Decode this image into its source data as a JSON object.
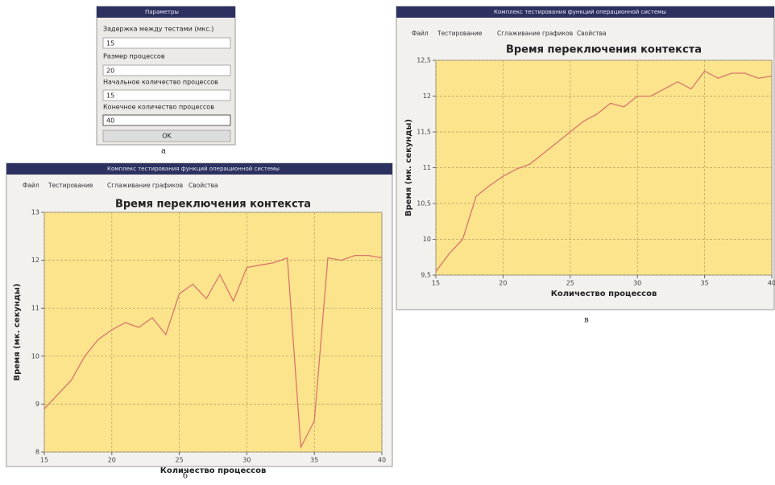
{
  "dialog": {
    "title": "Параметры",
    "fields": [
      {
        "label": "Задержка между тестами (мкс.)",
        "value": "15"
      },
      {
        "label": "Размер процессов",
        "value": "20"
      },
      {
        "label": "Начальное количество процессов",
        "value": "15"
      },
      {
        "label": "Конечное количество процессов",
        "value": "40"
      }
    ],
    "button": "OK"
  },
  "windows": [
    {
      "title": "Комплекс тестирования функций операционной системы",
      "menu": [
        "Файл",
        "Тестирование",
        "Сглаживание графиков",
        "Свойства"
      ]
    },
    {
      "title": "Комплекс тестирования функций операционной системы",
      "menu": [
        "Файл",
        "Тестирование",
        "Сглаживание графиков",
        "Свойства"
      ]
    }
  ],
  "captions": [
    "а",
    "б",
    "в"
  ],
  "chart_data": [
    {
      "type": "line",
      "title": "Время переключения контекста",
      "x_label": "Количество процессов",
      "y_label": "Время (мк. секунды)",
      "x": [
        15,
        16,
        17,
        18,
        19,
        20,
        21,
        22,
        23,
        24,
        25,
        26,
        27,
        28,
        29,
        30,
        31,
        32,
        33,
        34,
        35,
        36,
        37,
        38,
        39,
        40
      ],
      "values": [
        8.9,
        9.2,
        9.5,
        10.0,
        10.35,
        10.55,
        10.7,
        10.6,
        10.8,
        10.45,
        11.3,
        11.5,
        11.2,
        11.7,
        11.15,
        11.85,
        11.9,
        11.95,
        12.05,
        8.1,
        8.65,
        12.05,
        12.0,
        12.1,
        12.1,
        12.05
      ],
      "color": "#d9766b",
      "xlim": [
        15,
        40
      ],
      "ylim": [
        8,
        13
      ],
      "xticks": [
        15,
        20,
        25,
        30,
        35,
        40
      ],
      "yticks": [
        8,
        9,
        10,
        11,
        12,
        13
      ],
      "grid": true
    },
    {
      "type": "line",
      "title": "Время переключения контекста",
      "x_label": "Количество процессов",
      "y_label": "Время (мк. секунды)",
      "x": [
        15,
        16,
        17,
        18,
        19,
        20,
        21,
        22,
        23,
        24,
        25,
        26,
        27,
        28,
        29,
        30,
        31,
        32,
        33,
        34,
        35,
        36,
        37,
        38,
        39,
        40
      ],
      "values": [
        9.55,
        9.8,
        10.0,
        10.6,
        10.75,
        10.88,
        10.98,
        11.05,
        11.2,
        11.35,
        11.5,
        11.65,
        11.75,
        11.9,
        11.85,
        12.0,
        12.0,
        12.1,
        12.2,
        12.1,
        12.35,
        12.25,
        12.32,
        12.32,
        12.25,
        12.28
      ],
      "color": "#d9766b",
      "xlim": [
        15,
        40
      ],
      "ylim": [
        9.5,
        12.5
      ],
      "xticks": [
        15,
        20,
        25,
        30,
        35,
        40
      ],
      "yticks": [
        {
          "value": 9.5,
          "label": "9,5"
        },
        10,
        {
          "value": 10.5,
          "label": "10,5"
        },
        11,
        {
          "value": 11.5,
          "label": "11,5"
        },
        12,
        {
          "value": 12.5,
          "label": "12,5"
        }
      ],
      "grid": true
    }
  ]
}
